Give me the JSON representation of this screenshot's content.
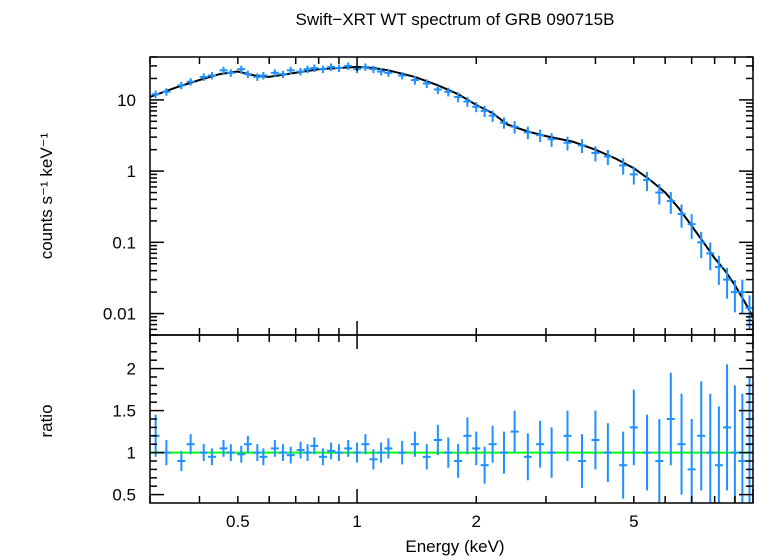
{
  "chart_data": {
    "type": "scatter",
    "title": "Swift−XRT WT spectrum of GRB 090715B",
    "xlabel": "Energy (keV)",
    "xscale": "log",
    "xlim": [
      0.3,
      10.0
    ],
    "xticks": [
      {
        "value": 0.5,
        "label": "0.5"
      },
      {
        "value": 1,
        "label": "1"
      },
      {
        "value": 2,
        "label": "2"
      },
      {
        "value": 5,
        "label": "5"
      }
    ],
    "colors": {
      "data": "#1e90ff",
      "model": "#000000",
      "ratio_line": "#00ff00",
      "axes": "#000000"
    },
    "panels": [
      {
        "name": "spectrum",
        "ylabel": "counts s⁻¹ keV⁻¹",
        "yscale": "log",
        "ylim": [
          0.005,
          40
        ],
        "yticks": [
          {
            "value": 10,
            "label": "10"
          },
          {
            "value": 1,
            "label": "1"
          },
          {
            "value": 0.1,
            "label": "0.1"
          },
          {
            "value": 0.01,
            "label": "0.01"
          }
        ],
        "model": {
          "x": [
            0.3,
            0.35,
            0.4,
            0.45,
            0.5,
            0.55,
            0.6,
            0.7,
            0.8,
            0.9,
            1.0,
            1.1,
            1.2,
            1.4,
            1.6,
            1.8,
            2.0,
            2.2,
            2.4,
            2.7,
            3.0,
            3.5,
            4.0,
            4.5,
            5.0,
            5.5,
            6.0,
            6.5,
            7.0,
            7.5,
            8.0,
            8.5,
            9.0,
            9.5,
            10.0
          ],
          "y": [
            11,
            15,
            19,
            23,
            25,
            22,
            21,
            24,
            27,
            28,
            29,
            28,
            26,
            21,
            16,
            12,
            8.5,
            6.5,
            4.5,
            3.6,
            3.1,
            2.6,
            2.0,
            1.5,
            1.1,
            0.75,
            0.5,
            0.3,
            0.17,
            0.1,
            0.06,
            0.04,
            0.025,
            0.015,
            0.009
          ]
        },
        "data": {
          "x": [
            0.31,
            0.33,
            0.36,
            0.38,
            0.41,
            0.43,
            0.46,
            0.48,
            0.51,
            0.53,
            0.56,
            0.58,
            0.62,
            0.65,
            0.68,
            0.72,
            0.75,
            0.78,
            0.82,
            0.86,
            0.9,
            0.95,
            1.0,
            1.05,
            1.1,
            1.15,
            1.2,
            1.3,
            1.4,
            1.5,
            1.6,
            1.7,
            1.8,
            1.9,
            2.0,
            2.1,
            2.2,
            2.35,
            2.5,
            2.7,
            2.9,
            3.1,
            3.4,
            3.7,
            4.0,
            4.3,
            4.7,
            5.0,
            5.4,
            5.8,
            6.2,
            6.6,
            7.0,
            7.4,
            7.8,
            8.2,
            8.6,
            9.0,
            9.4,
            9.8
          ],
          "y": [
            12,
            13,
            16,
            18,
            21,
            22,
            26,
            24,
            27,
            23,
            21,
            22,
            24,
            23,
            26,
            25,
            27,
            28,
            27,
            29,
            28,
            30,
            27,
            29,
            27,
            25,
            24,
            22,
            19,
            17,
            14,
            13,
            11,
            9.5,
            8,
            7,
            6,
            4.8,
            4.2,
            3.5,
            3.2,
            2.8,
            2.5,
            2.3,
            1.8,
            1.6,
            1.2,
            0.9,
            0.75,
            0.5,
            0.38,
            0.25,
            0.18,
            0.1,
            0.07,
            0.045,
            0.03,
            0.02,
            0.02,
            0.012
          ],
          "err": [
            0.12,
            0.12,
            0.12,
            0.12,
            0.12,
            0.12,
            0.12,
            0.12,
            0.12,
            0.12,
            0.12,
            0.12,
            0.12,
            0.12,
            0.12,
            0.12,
            0.12,
            0.12,
            0.12,
            0.12,
            0.12,
            0.12,
            0.12,
            0.12,
            0.12,
            0.12,
            0.12,
            0.12,
            0.14,
            0.14,
            0.14,
            0.14,
            0.16,
            0.16,
            0.16,
            0.18,
            0.18,
            0.18,
            0.2,
            0.2,
            0.2,
            0.22,
            0.22,
            0.22,
            0.24,
            0.24,
            0.26,
            0.28,
            0.3,
            0.32,
            0.34,
            0.36,
            0.38,
            0.4,
            0.42,
            0.44,
            0.46,
            0.48,
            0.5,
            0.5
          ]
        }
      },
      {
        "name": "ratio",
        "ylabel": "ratio",
        "yscale": "linear",
        "ylim": [
          0.4,
          2.4
        ],
        "yticks": [
          {
            "value": 0.5,
            "label": "0.5"
          },
          {
            "value": 1,
            "label": "1"
          },
          {
            "value": 1.5,
            "label": "1.5"
          },
          {
            "value": 2,
            "label": "2"
          }
        ],
        "reference_line": 1.0,
        "data": {
          "x": [
            0.31,
            0.33,
            0.36,
            0.38,
            0.41,
            0.43,
            0.46,
            0.48,
            0.51,
            0.53,
            0.56,
            0.58,
            0.62,
            0.65,
            0.68,
            0.72,
            0.75,
            0.78,
            0.82,
            0.86,
            0.9,
            0.95,
            1.0,
            1.05,
            1.1,
            1.15,
            1.2,
            1.3,
            1.4,
            1.5,
            1.6,
            1.7,
            1.8,
            1.9,
            2.0,
            2.1,
            2.2,
            2.35,
            2.5,
            2.7,
            2.9,
            3.1,
            3.4,
            3.7,
            4.0,
            4.3,
            4.7,
            5.0,
            5.4,
            5.8,
            6.2,
            6.6,
            7.0,
            7.4,
            7.8,
            8.2,
            8.6,
            9.0,
            9.4,
            9.8
          ],
          "y": [
            1.2,
            1.0,
            0.9,
            1.1,
            1.0,
            0.95,
            1.05,
            1.0,
            0.98,
            1.1,
            1.0,
            0.95,
            1.05,
            1.0,
            0.97,
            1.03,
            1.0,
            1.08,
            0.95,
            1.02,
            1.0,
            1.05,
            1.0,
            1.1,
            0.92,
            1.0,
            1.05,
            1.0,
            1.1,
            0.95,
            1.15,
            1.0,
            0.9,
            1.2,
            1.05,
            0.85,
            1.1,
            1.0,
            1.25,
            0.95,
            1.1,
            1.0,
            1.2,
            0.9,
            1.15,
            1.0,
            0.85,
            1.3,
            1.0,
            0.9,
            1.4,
            1.1,
            0.8,
            1.2,
            1.0,
            0.85,
            1.3,
            1.0,
            0.9,
            1.1
          ],
          "err": [
            0.25,
            0.15,
            0.12,
            0.12,
            0.1,
            0.1,
            0.1,
            0.1,
            0.1,
            0.1,
            0.1,
            0.1,
            0.1,
            0.1,
            0.1,
            0.1,
            0.1,
            0.1,
            0.1,
            0.1,
            0.1,
            0.1,
            0.12,
            0.12,
            0.12,
            0.12,
            0.12,
            0.14,
            0.15,
            0.15,
            0.18,
            0.18,
            0.2,
            0.22,
            0.2,
            0.22,
            0.22,
            0.25,
            0.25,
            0.28,
            0.28,
            0.3,
            0.3,
            0.32,
            0.35,
            0.35,
            0.4,
            0.45,
            0.45,
            0.5,
            0.55,
            0.6,
            0.6,
            0.65,
            0.7,
            0.7,
            0.75,
            0.8,
            0.8,
            0.8
          ]
        }
      }
    ]
  }
}
